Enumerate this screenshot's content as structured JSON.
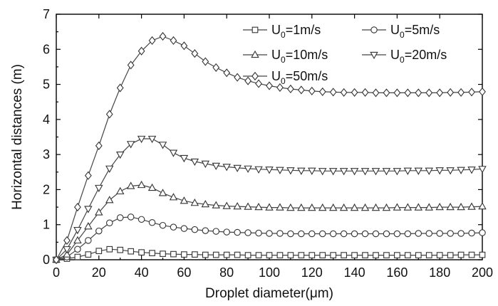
{
  "chart_data": {
    "type": "line",
    "title": "",
    "xlabel": "Droplet diameter(μm)",
    "ylabel": "Horizontal distances (m)",
    "xlim": [
      0,
      200
    ],
    "ylim": [
      0,
      7
    ],
    "xticks": [
      0,
      20,
      40,
      60,
      80,
      100,
      120,
      140,
      160,
      180,
      200
    ],
    "yticks": [
      0,
      1,
      2,
      3,
      4,
      5,
      6,
      7
    ],
    "grid": false,
    "legend_position": "top-right",
    "x": [
      0,
      5,
      10,
      15,
      20,
      25,
      30,
      35,
      40,
      45,
      50,
      55,
      60,
      65,
      70,
      75,
      80,
      85,
      90,
      95,
      100,
      105,
      110,
      115,
      120,
      125,
      130,
      135,
      140,
      145,
      150,
      155,
      160,
      165,
      170,
      175,
      180,
      185,
      190,
      195,
      200
    ],
    "series": [
      {
        "name": "U0=1m/s",
        "legend_main": "U",
        "legend_sub": "0",
        "legend_rest": "=1m/s",
        "marker": "square",
        "values": [
          0,
          0.03,
          0.08,
          0.15,
          0.25,
          0.3,
          0.28,
          0.24,
          0.21,
          0.19,
          0.17,
          0.16,
          0.15,
          0.15,
          0.14,
          0.14,
          0.14,
          0.14,
          0.13,
          0.13,
          0.13,
          0.13,
          0.13,
          0.13,
          0.13,
          0.13,
          0.13,
          0.13,
          0.13,
          0.13,
          0.13,
          0.13,
          0.13,
          0.13,
          0.13,
          0.13,
          0.13,
          0.13,
          0.14,
          0.14,
          0.14
        ]
      },
      {
        "name": "U0=5m/s",
        "legend_main": "U",
        "legend_sub": "0",
        "legend_rest": "=5m/s",
        "marker": "circle",
        "values": [
          0,
          0.08,
          0.3,
          0.55,
          0.82,
          1.05,
          1.2,
          1.22,
          1.15,
          1.06,
          0.98,
          0.93,
          0.89,
          0.86,
          0.83,
          0.81,
          0.79,
          0.78,
          0.77,
          0.76,
          0.75,
          0.75,
          0.74,
          0.74,
          0.74,
          0.74,
          0.74,
          0.74,
          0.74,
          0.74,
          0.74,
          0.74,
          0.74,
          0.74,
          0.75,
          0.75,
          0.75,
          0.75,
          0.75,
          0.76,
          0.77
        ]
      },
      {
        "name": "U0=10m/s",
        "legend_main": "U",
        "legend_sub": "0",
        "legend_rest": "=10m/s",
        "marker": "triangle-up",
        "values": [
          0,
          0.15,
          0.55,
          0.95,
          1.35,
          1.7,
          1.95,
          2.1,
          2.13,
          2.05,
          1.9,
          1.78,
          1.68,
          1.62,
          1.58,
          1.55,
          1.53,
          1.52,
          1.51,
          1.5,
          1.49,
          1.49,
          1.48,
          1.48,
          1.48,
          1.48,
          1.48,
          1.48,
          1.48,
          1.48,
          1.48,
          1.48,
          1.49,
          1.49,
          1.49,
          1.49,
          1.5,
          1.5,
          1.5,
          1.51,
          1.52
        ]
      },
      {
        "name": "U0=20m/s",
        "legend_main": "U",
        "legend_sub": "0",
        "legend_rest": "=20m/s",
        "marker": "triangle-down",
        "values": [
          0,
          0.3,
          0.85,
          1.45,
          2.05,
          2.6,
          3.0,
          3.3,
          3.45,
          3.45,
          3.28,
          3.05,
          2.9,
          2.8,
          2.74,
          2.68,
          2.65,
          2.62,
          2.6,
          2.58,
          2.57,
          2.56,
          2.55,
          2.54,
          2.54,
          2.53,
          2.53,
          2.53,
          2.53,
          2.53,
          2.53,
          2.53,
          2.53,
          2.54,
          2.54,
          2.54,
          2.55,
          2.55,
          2.56,
          2.57,
          2.59
        ]
      },
      {
        "name": "U0=50m/s",
        "legend_main": "U",
        "legend_sub": "0",
        "legend_rest": "=50m/s",
        "marker": "diamond",
        "values": [
          0,
          0.55,
          1.5,
          2.4,
          3.25,
          4.15,
          4.9,
          5.55,
          5.95,
          6.25,
          6.37,
          6.25,
          6.1,
          5.88,
          5.65,
          5.48,
          5.33,
          5.2,
          5.1,
          5.02,
          4.96,
          4.91,
          4.87,
          4.84,
          4.81,
          4.79,
          4.78,
          4.77,
          4.77,
          4.77,
          4.76,
          4.76,
          4.76,
          4.76,
          4.76,
          4.76,
          4.76,
          4.77,
          4.77,
          4.78,
          4.79
        ]
      }
    ]
  }
}
